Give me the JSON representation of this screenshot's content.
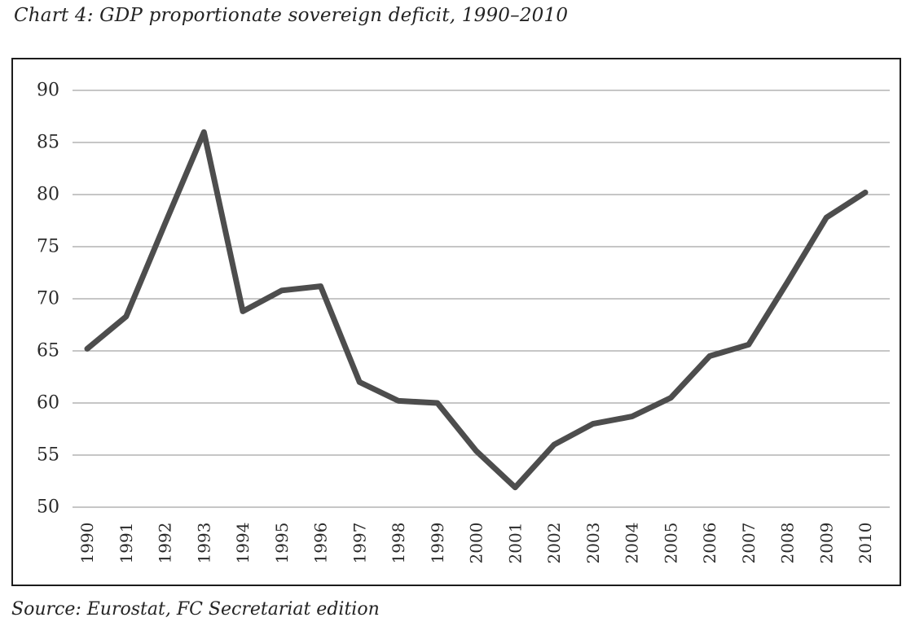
{
  "page": {
    "title": "Chart 4: GDP proportionate sovereign deficit, 1990–2010",
    "source": "Source: Eurostat, FC Secretariat edition"
  },
  "chart_data": {
    "type": "line",
    "title": "Chart 4: GDP proportionate sovereign deficit, 1990–2010",
    "source": "Source: Eurostat, FC Secretariat edition",
    "xlabel": "",
    "ylabel": "",
    "x": [
      1990,
      1991,
      1992,
      1993,
      1994,
      1995,
      1996,
      1997,
      1998,
      1999,
      2000,
      2001,
      2002,
      2003,
      2004,
      2005,
      2006,
      2007,
      2008,
      2009,
      2010
    ],
    "series": [
      {
        "name": "GDP proportionate sovereign deficit",
        "values": [
          65.2,
          68.3,
          77.2,
          86.0,
          68.8,
          70.8,
          71.2,
          62.0,
          60.2,
          60.0,
          55.4,
          51.9,
          56.0,
          58.0,
          58.7,
          60.5,
          64.5,
          65.6,
          71.6,
          77.8,
          80.2
        ]
      }
    ],
    "ylim": [
      50,
      90
    ],
    "ytick_step": 5,
    "yticks": [
      50,
      55,
      60,
      65,
      70,
      75,
      80,
      85,
      90
    ],
    "grid": "horizontal",
    "legend": "none",
    "colors": {
      "line": "#4d4d4d",
      "grid": "#a3a3a3",
      "frame": "#1c1c1c",
      "text": "#2a2a2a",
      "background": "#ffffff"
    }
  }
}
